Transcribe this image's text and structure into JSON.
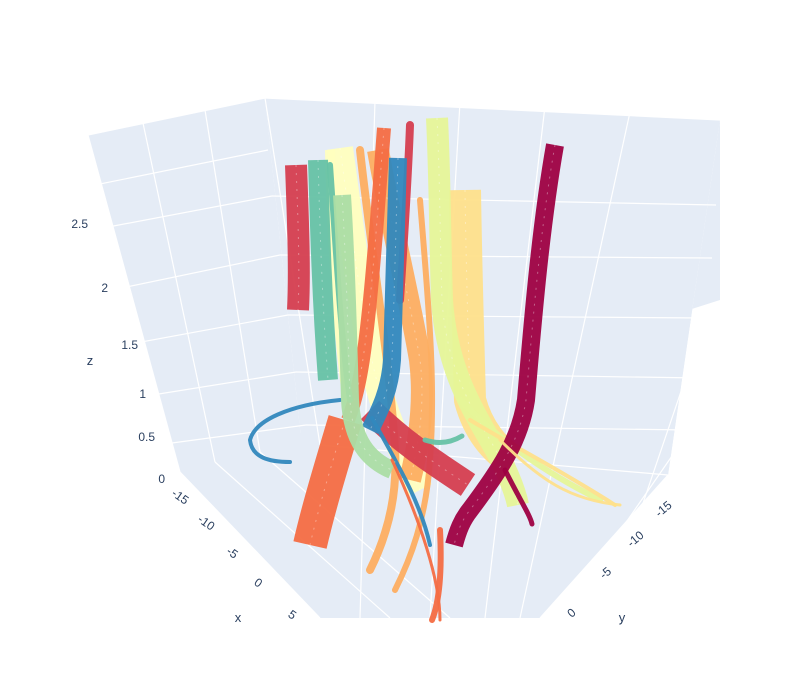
{
  "chart_data": {
    "type": "3d-streamtube",
    "title": "",
    "scene": {
      "background": "#e5ecf6",
      "grid_color": "#ffffff",
      "axes": {
        "x": {
          "title": "x",
          "ticks": [
            "-15",
            "-10",
            "-5",
            "0",
            "5"
          ]
        },
        "y": {
          "title": "y",
          "ticks": [
            "-15",
            "-10",
            "-5",
            "0"
          ]
        },
        "z": {
          "title": "z",
          "ticks": [
            "0",
            "0.5",
            "1",
            "1.5",
            "2",
            "2.5"
          ],
          "range": [
            0,
            3
          ]
        }
      }
    },
    "colorscale": "Spectral",
    "palette": [
      "#9e0142",
      "#d53e4f",
      "#f46d43",
      "#fdae61",
      "#fee08b",
      "#ffffbf",
      "#e6f598",
      "#abdda4",
      "#66c2a5",
      "#3288bd"
    ],
    "legend": "none"
  }
}
